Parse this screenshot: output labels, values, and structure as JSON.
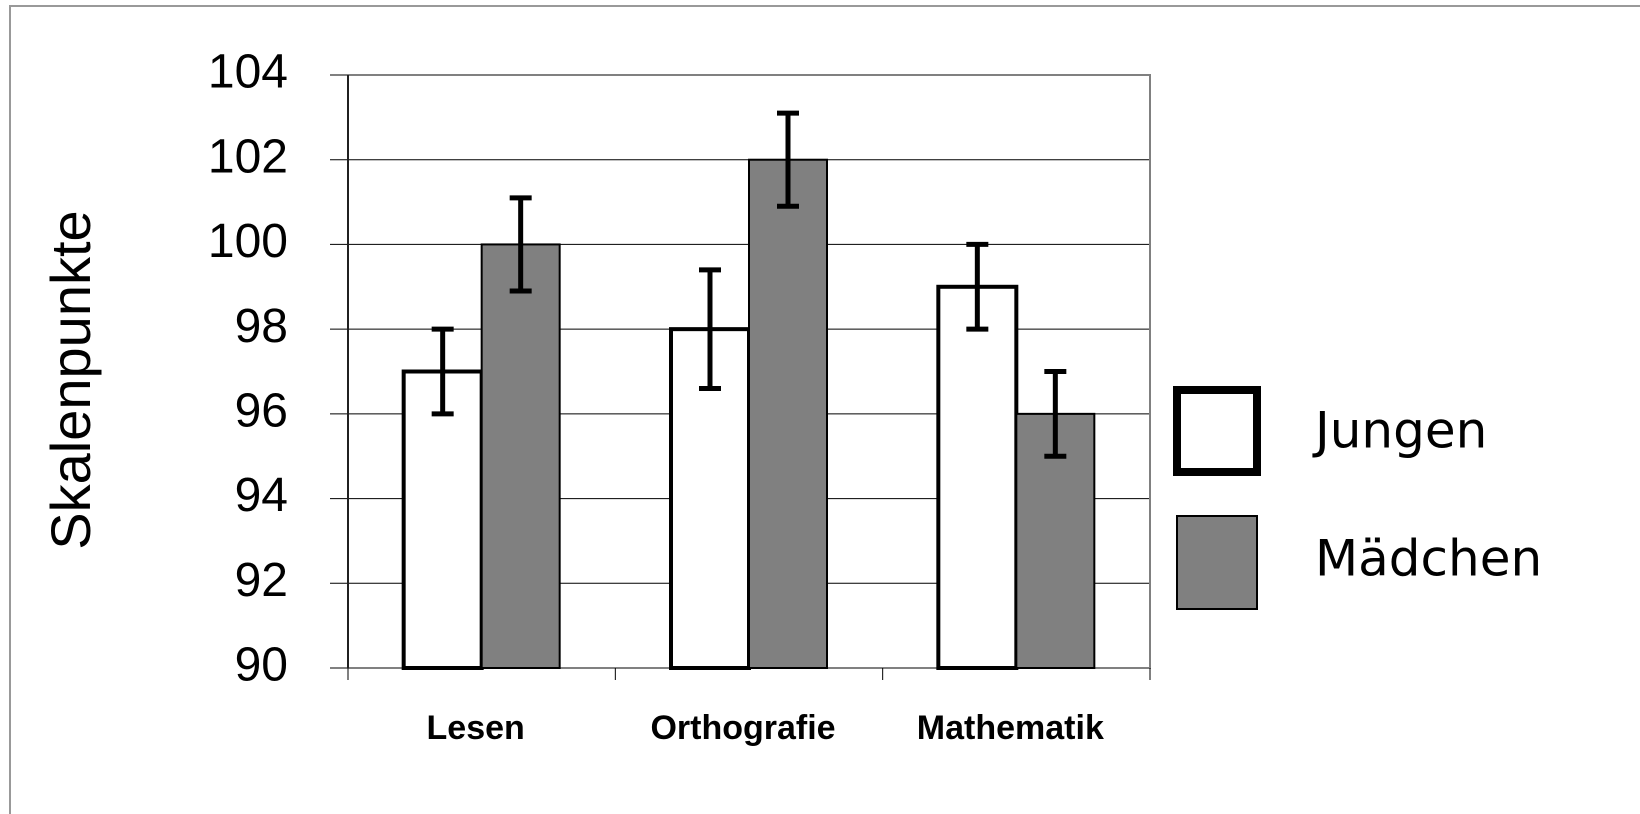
{
  "chart_data": {
    "type": "bar",
    "y_label": "Skalenpunkte",
    "categories": [
      "Lesen",
      "Orthografie",
      "Mathematik"
    ],
    "series": [
      {
        "name": "Jungen",
        "color": "#ffffff",
        "values": [
          97,
          98,
          99
        ],
        "errors": [
          1,
          1.4,
          1
        ]
      },
      {
        "name": "Mädchen",
        "color": "#808080",
        "values": [
          100,
          102,
          96
        ],
        "errors": [
          1.1,
          1.1,
          1
        ]
      }
    ],
    "ylim": [
      90,
      104
    ],
    "yticks": [
      90,
      92,
      94,
      96,
      98,
      100,
      102,
      104
    ],
    "grid": true,
    "legend": "right"
  }
}
